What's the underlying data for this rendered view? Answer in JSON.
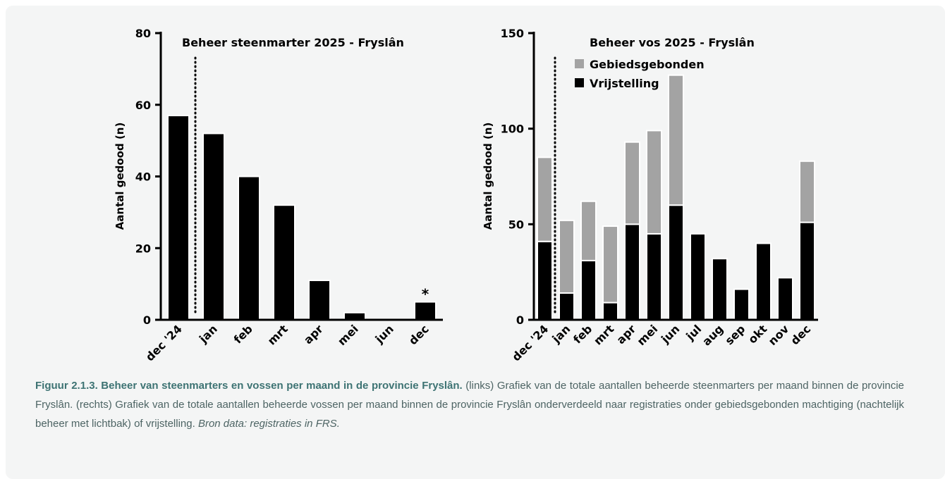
{
  "chart_data": [
    {
      "type": "bar",
      "title": "Beheer steenmarter 2025 - Fryslân",
      "y_label": "Aantal gedood (n)",
      "categories": [
        "dec '24",
        "jan",
        "feb",
        "mrt",
        "apr",
        "mei",
        "jun",
        "dec"
      ],
      "values": [
        57,
        52,
        40,
        32,
        11,
        2,
        0,
        5
      ],
      "color": "#000000",
      "annotations": [
        {
          "text": "*",
          "x": "dec"
        }
      ],
      "ylim": [
        0,
        80
      ],
      "yticks": [
        0,
        20,
        40,
        60,
        80
      ]
    },
    {
      "type": "stacked_bar",
      "title": "Beheer vos 2025 - Fryslân",
      "y_label": "Aantal gedood (n)",
      "categories": [
        "dec '24",
        "jan",
        "feb",
        "mrt",
        "apr",
        "mei",
        "jun",
        "jul",
        "aug",
        "sep",
        "okt",
        "nov",
        "dec"
      ],
      "series": [
        {
          "name": "Gebiedsgebonden",
          "color": "#a3a3a3",
          "values": [
            44,
            38,
            31,
            40,
            43,
            54,
            68,
            0,
            0,
            0,
            0,
            0,
            32
          ]
        },
        {
          "name": "Vrijstelling",
          "color": "#000000",
          "values": [
            41,
            14,
            31,
            9,
            50,
            45,
            60,
            45,
            32,
            16,
            40,
            22,
            51
          ]
        }
      ],
      "ylim": [
        0,
        150
      ],
      "yticks": [
        0,
        50,
        100,
        150
      ]
    }
  ],
  "caption": {
    "title": "Figuur 2.1.3. Beheer van steenmarters en vossen per maand in de provincie Fryslân.",
    "text": "(links) Grafiek van de totale aantallen beheerde steenmarters per maand binnen de provincie Fryslân. (rechts) Grafiek van de totale aantallen beheerde vossen per maand binnen de provincie Fryslân onderverdeeld naar registraties onder gebiedsgebonden machtiging (nachtelijk beheer met lichtbak) of vrijstelling.",
    "source": "Bron data: registraties in FRS."
  }
}
